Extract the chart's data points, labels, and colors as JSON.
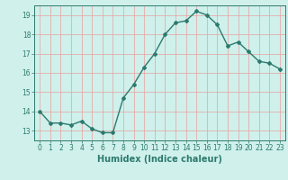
{
  "x": [
    0,
    1,
    2,
    3,
    4,
    5,
    6,
    7,
    8,
    9,
    10,
    11,
    12,
    13,
    14,
    15,
    16,
    17,
    18,
    19,
    20,
    21,
    22,
    23
  ],
  "y": [
    14.0,
    13.4,
    13.4,
    13.3,
    13.5,
    13.1,
    12.9,
    12.9,
    14.7,
    15.4,
    16.3,
    17.0,
    18.0,
    18.6,
    18.7,
    19.2,
    19.0,
    18.5,
    17.4,
    17.6,
    17.1,
    16.6,
    16.5,
    16.2
  ],
  "xlabel": "Humidex (Indice chaleur)",
  "xlim": [
    -0.5,
    23.5
  ],
  "ylim": [
    12.5,
    19.5
  ],
  "yticks": [
    13,
    14,
    15,
    16,
    17,
    18,
    19
  ],
  "xticks": [
    0,
    1,
    2,
    3,
    4,
    5,
    6,
    7,
    8,
    9,
    10,
    11,
    12,
    13,
    14,
    15,
    16,
    17,
    18,
    19,
    20,
    21,
    22,
    23
  ],
  "line_color": "#2d7a6e",
  "marker": "D",
  "marker_size": 2.0,
  "bg_color": "#cff0eb",
  "grid_color": "#e8a0a0",
  "line_width": 1.0,
  "tick_fontsize": 5.5,
  "xlabel_fontsize": 7.0
}
